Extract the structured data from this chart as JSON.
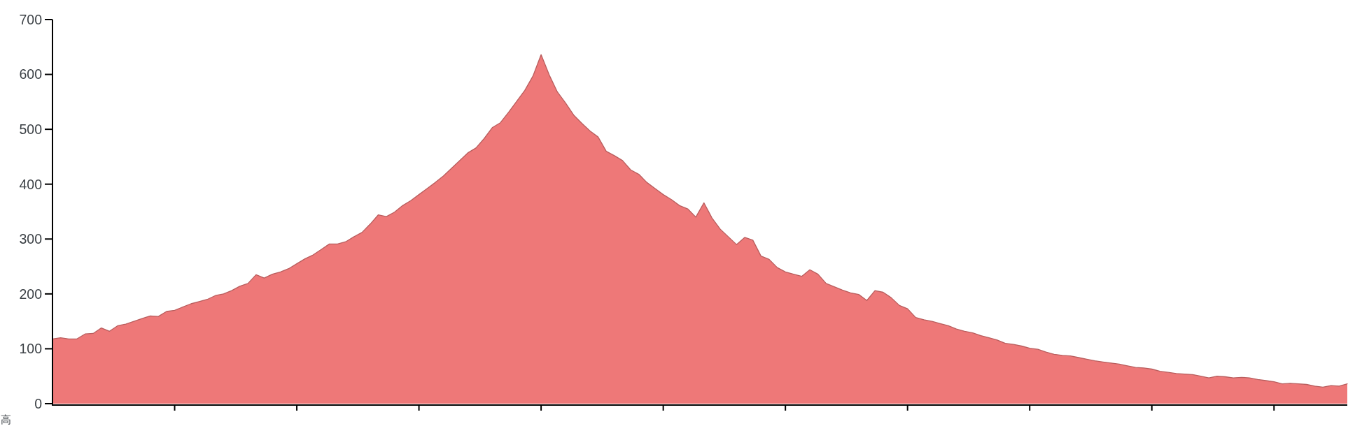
{
  "chart_data": {
    "type": "area",
    "ylabel": "高",
    "tick_labels": "y",
    "categories": [
      null,
      null,
      null,
      null,
      null,
      null,
      null,
      null,
      null,
      null,
      null,
      null,
      null,
      null,
      null,
      null,
      null,
      null,
      null,
      null,
      null,
      null,
      null,
      null,
      null,
      null,
      null,
      null,
      null,
      null,
      null,
      null,
      null,
      null,
      null,
      null,
      null,
      null,
      null,
      null,
      null,
      null,
      null,
      null,
      null,
      null,
      null,
      null,
      null,
      null,
      null,
      null,
      null,
      null,
      null,
      null,
      null,
      null,
      null,
      null,
      null,
      null,
      null,
      null,
      null,
      null,
      null,
      null,
      null,
      null,
      null,
      null,
      null,
      null,
      null,
      null,
      null,
      null,
      null,
      null,
      null,
      null,
      null,
      null,
      null,
      null,
      null,
      null,
      null,
      null,
      null,
      null,
      null,
      null,
      null,
      null,
      null,
      null,
      null,
      null,
      null,
      null,
      null,
      null,
      null,
      null,
      null,
      null,
      null,
      null,
      null,
      null,
      null,
      null,
      null,
      null,
      null,
      null,
      null,
      null,
      null,
      null,
      null,
      null,
      null,
      null,
      null,
      null,
      null,
      null,
      null,
      null,
      null,
      null,
      null,
      null,
      null,
      null,
      null,
      null,
      null,
      null,
      null,
      null,
      null,
      null,
      null,
      null,
      null,
      null,
      null,
      null,
      null,
      null,
      null,
      null,
      null,
      null,
      null,
      null
    ],
    "ylim": [
      0,
      700
    ],
    "yticks": [
      0,
      100,
      200,
      300,
      400,
      500,
      600,
      700
    ],
    "series": [
      {
        "color": "#ee7878",
        "values": [
          118,
          120,
          118,
          118,
          127,
          128,
          138,
          132,
          142,
          145,
          150,
          155,
          160,
          159,
          168,
          170,
          176,
          182,
          186,
          190,
          197,
          200,
          206,
          214,
          219,
          235,
          229,
          236,
          240,
          246,
          255,
          264,
          271,
          281,
          291,
          291,
          295,
          304,
          312,
          327,
          344,
          341,
          349,
          361,
          370,
          381,
          392,
          403,
          415,
          429,
          443,
          457,
          466,
          483,
          503,
          512,
          531,
          551,
          571,
          597,
          636,
          599,
          568,
          548,
          526,
          511,
          497,
          486,
          460,
          452,
          443,
          426,
          418,
          403,
          392,
          381,
          372,
          361,
          355,
          340,
          366,
          338,
          318,
          304,
          290,
          303,
          298,
          269,
          263,
          248,
          240,
          236,
          232,
          244,
          236,
          219,
          213,
          207,
          202,
          199,
          188,
          206,
          203,
          193,
          179,
          173,
          157,
          153,
          150,
          146,
          142,
          136,
          132,
          129,
          124,
          120,
          116,
          110,
          108,
          105,
          101,
          99,
          94,
          90,
          88,
          87,
          84,
          81,
          78,
          76,
          74,
          72,
          69,
          66,
          65,
          63,
          59,
          57,
          55,
          54,
          53,
          50,
          47,
          50,
          49,
          47,
          48,
          47,
          44,
          42,
          40,
          36,
          37,
          36,
          35,
          32,
          30,
          33,
          32,
          36
        ]
      }
    ]
  }
}
